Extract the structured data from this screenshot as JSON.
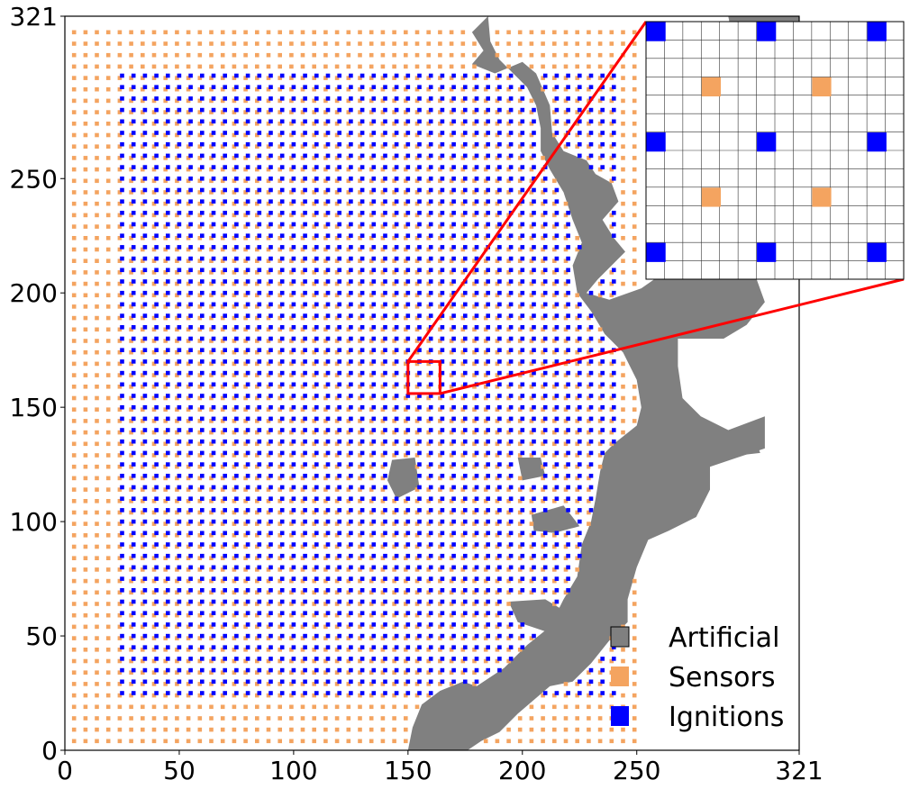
{
  "chart_data": {
    "type": "scatter",
    "title": "",
    "xlabel": "",
    "ylabel": "",
    "xlim": [
      0,
      321
    ],
    "ylim": [
      0,
      321
    ],
    "x_ticks": [
      0,
      50,
      100,
      150,
      200,
      250,
      321
    ],
    "y_ticks": [
      0,
      50,
      100,
      150,
      200,
      250,
      321
    ],
    "x_tick_labels": [
      "0",
      "50",
      "100",
      "150",
      "200",
      "250",
      "321"
    ],
    "y_tick_labels": [
      "0",
      "50",
      "100",
      "150",
      "200",
      "250",
      "321"
    ],
    "grid": false,
    "legend_position": "bottom-right",
    "legend": [
      {
        "label": "Artificial",
        "color": "#808080"
      },
      {
        "label": "Sensors",
        "color": "#f4a460"
      },
      {
        "label": "Ignitions",
        "color": "#0000ff"
      }
    ],
    "series": [
      {
        "name": "Sensors",
        "color": "#f4a460",
        "pattern": "grid",
        "spacing": 5,
        "x_range": [
          4,
          250
        ],
        "y_range": [
          4,
          317
        ],
        "note_masked_by": "Artificial"
      },
      {
        "name": "Ignitions",
        "color": "#0000ff",
        "pattern": "grid",
        "spacing": 5,
        "x_range": [
          25,
          240
        ],
        "y_range": [
          25,
          295
        ],
        "note_masked_by": "Artificial"
      },
      {
        "name": "Artificial",
        "color": "#808080",
        "type": "region",
        "description": "coastline region on the east side of the domain"
      }
    ],
    "zoom_inset": {
      "source_box_x": [
        150,
        164
      ],
      "source_box_y": [
        156,
        170
      ],
      "box_color": "#ff0000",
      "grid_cells": 14,
      "ignition_cells": [
        [
          0,
          0
        ],
        [
          6,
          0
        ],
        [
          12,
          0
        ],
        [
          0,
          6
        ],
        [
          6,
          6
        ],
        [
          12,
          6
        ],
        [
          0,
          12
        ],
        [
          6,
          12
        ],
        [
          12,
          12
        ]
      ],
      "sensor_cells": [
        [
          3,
          3
        ],
        [
          9,
          3
        ],
        [
          3,
          9
        ],
        [
          9,
          9
        ]
      ]
    }
  }
}
